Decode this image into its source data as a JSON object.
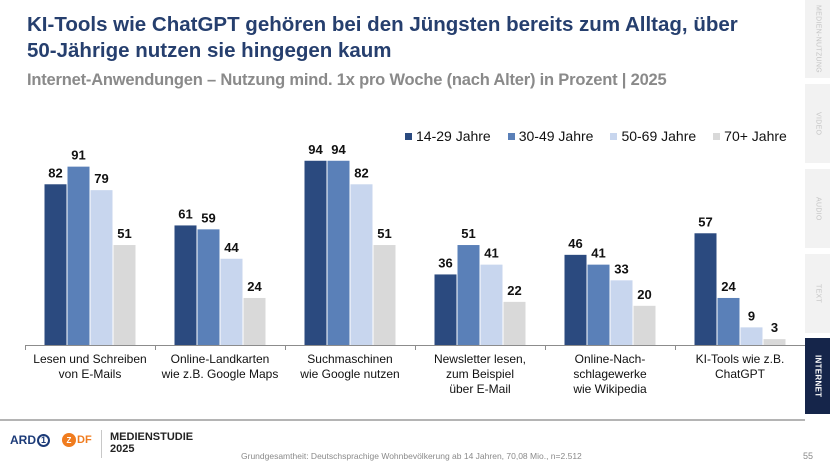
{
  "header": {
    "title": "KI-Tools wie ChatGPT gehören bei den Jüngsten bereits zum Alltag, über 50-Jährige nutzen sie hingegen kaum",
    "subtitle": "Internet-Anwendungen – Nutzung mind. 1x pro Woche (nach Alter) in Prozent | 2025"
  },
  "sidebar": {
    "tabs": [
      {
        "label": "MEDIEN-NUTZUNG",
        "active": false
      },
      {
        "label": "VIDEO",
        "active": false
      },
      {
        "label": "AUDIO",
        "active": false
      },
      {
        "label": "TEXT",
        "active": false
      },
      {
        "label": "INTERNET",
        "active": true
      }
    ]
  },
  "chart_data": {
    "type": "bar",
    "title": "Internet-Anwendungen – Nutzung mind. 1x pro Woche (nach Alter) in Prozent | 2025",
    "xlabel": "",
    "ylabel": "",
    "ylim": [
      0,
      100
    ],
    "grid": false,
    "legend_position": "top-right",
    "categories": [
      [
        "Lesen und Schreiben",
        "von E-Mails"
      ],
      [
        "Online-Landkarten",
        "wie z.B. Google Maps"
      ],
      [
        "Suchmaschinen",
        "wie Google nutzen"
      ],
      [
        "Newsletter lesen,",
        "zum Beispiel",
        "über E-Mail"
      ],
      [
        "Online-Nach-",
        "schlagewerke",
        "wie Wikipedia"
      ],
      [
        "KI-Tools wie z.B.",
        "ChatGPT"
      ]
    ],
    "series": [
      {
        "name": "14-29 Jahre",
        "color": "#2b4a7f",
        "values": [
          82,
          61,
          94,
          36,
          46,
          57
        ]
      },
      {
        "name": "30-49 Jahre",
        "color": "#5a80b8",
        "values": [
          91,
          59,
          94,
          51,
          41,
          24
        ]
      },
      {
        "name": "50-69 Jahre",
        "color": "#c8d6ee",
        "values": [
          79,
          44,
          82,
          41,
          33,
          9
        ]
      },
      {
        "name": "70+ Jahre",
        "color": "#d9d9d9",
        "values": [
          51,
          24,
          51,
          22,
          20,
          3
        ]
      }
    ]
  },
  "footer": {
    "ard_label": "ARD",
    "ard_number": "1",
    "zdf_label": "DF",
    "zdf_initial": "Z",
    "brand_line1": "MEDIENSTUDIE",
    "brand_line2": "2025",
    "footnote": "Grundgesamtheit: Deutschsprachige Wohnbevölkerung ab 14 Jahren, 70,08 Mio., n=2.512",
    "page_number": "55"
  }
}
